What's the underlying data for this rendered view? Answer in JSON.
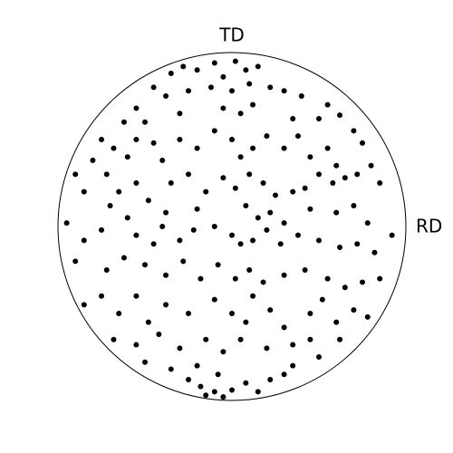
{
  "chart_data": {
    "type": "scatter",
    "annotations": [
      "TD",
      "RD"
    ],
    "color": "#000000",
    "xlim": [
      -1,
      1
    ],
    "ylim": [
      -1,
      1
    ],
    "x": [
      -0.35,
      -0.28,
      -0.2,
      -0.1,
      -0.05,
      0.02,
      0.08,
      0.15,
      -0.45,
      -0.38,
      -0.25,
      -0.12,
      0.0,
      0.1,
      0.22,
      0.3,
      0.4,
      0.55,
      0.62,
      0.5,
      -0.55,
      -0.62,
      -0.5,
      -0.3,
      -0.05,
      0.05,
      0.12,
      0.35,
      0.7,
      0.75,
      -0.75,
      -0.68,
      -0.8,
      -0.72,
      -0.6,
      -0.55,
      -0.45,
      -0.4,
      -0.3,
      -0.2,
      -0.1,
      0.0,
      0.05,
      0.12,
      0.2,
      0.3,
      0.38,
      0.45,
      0.55,
      0.6,
      0.5,
      0.58,
      0.65,
      0.72,
      0.8,
      0.85,
      -0.9,
      -0.85,
      -0.65,
      -0.55,
      -0.48,
      -0.35,
      -0.25,
      -0.15,
      -0.05,
      0.02,
      0.1,
      0.18,
      0.25,
      0.35,
      0.42,
      -0.7,
      -0.6,
      -0.38,
      -0.2,
      0.08,
      0.15,
      0.22,
      0.3,
      0.45,
      0.6,
      0.7,
      0.78,
      -0.95,
      -0.85,
      -0.75,
      -0.55,
      -0.45,
      -0.4,
      -0.3,
      -0.22,
      -0.1,
      0.0,
      0.05,
      0.12,
      0.2,
      0.28,
      0.38,
      0.5,
      0.62,
      0.72,
      0.82,
      0.92,
      -0.9,
      -0.72,
      -0.62,
      -0.5,
      -0.38,
      -0.28,
      -0.18,
      -0.08,
      0.02,
      0.1,
      0.18,
      0.3,
      0.42,
      0.55,
      0.65,
      0.75,
      0.85,
      -0.85,
      -0.75,
      -0.65,
      -0.55,
      -0.48,
      -0.38,
      -0.25,
      -0.1,
      0.0,
      0.08,
      0.12,
      0.22,
      0.3,
      0.45,
      0.52,
      0.6,
      0.7,
      0.78,
      -0.68,
      -0.55,
      -0.42,
      -0.3,
      -0.15,
      -0.05,
      0.05,
      0.2,
      0.35,
      0.45,
      0.62,
      -0.5,
      -0.35,
      -0.2,
      -0.18,
      -0.15,
      -0.1,
      -0.05,
      0.0,
      0.08,
      0.15,
      0.22,
      0.3,
      0.35,
      0.5,
      -0.25,
      -0.08
    ],
    "values": [
      0.88,
      0.92,
      0.9,
      0.94,
      0.86,
      0.95,
      0.9,
      0.92,
      0.8,
      0.75,
      0.78,
      0.8,
      0.78,
      0.82,
      0.8,
      0.78,
      0.75,
      0.7,
      0.64,
      0.62,
      0.68,
      0.6,
      0.6,
      0.65,
      0.68,
      0.65,
      0.7,
      0.62,
      0.55,
      0.48,
      0.5,
      0.45,
      0.38,
      0.3,
      0.4,
      0.5,
      0.48,
      0.38,
      0.5,
      0.45,
      0.55,
      0.5,
      0.4,
      0.45,
      0.52,
      0.45,
      0.52,
      0.4,
      0.45,
      0.35,
      0.3,
      0.25,
      0.28,
      0.3,
      0.35,
      0.25,
      0.3,
      0.2,
      0.2,
      0.25,
      0.15,
      0.25,
      0.3,
      0.2,
      0.28,
      0.22,
      0.3,
      0.25,
      0.18,
      0.2,
      0.22,
      0.12,
      0.05,
      0.08,
      0.1,
      0.12,
      0.05,
      0.08,
      0.02,
      0.1,
      0.08,
      0.12,
      0.02,
      0.02,
      -0.08,
      -0.02,
      -0.05,
      -0.1,
      0.0,
      -0.08,
      -0.02,
      0.0,
      -0.05,
      -0.1,
      -0.08,
      -0.02,
      -0.1,
      -0.05,
      -0.08,
      -0.12,
      -0.1,
      -0.15,
      -0.05,
      -0.2,
      -0.25,
      -0.18,
      -0.22,
      -0.28,
      -0.2,
      -0.3,
      -0.22,
      -0.3,
      -0.25,
      -0.32,
      -0.28,
      -0.25,
      -0.3,
      -0.35,
      -0.32,
      -0.3,
      -0.45,
      -0.4,
      -0.5,
      -0.4,
      -0.55,
      -0.45,
      -0.5,
      -0.42,
      -0.5,
      -0.55,
      -0.4,
      -0.48,
      -0.58,
      -0.5,
      -0.42,
      -0.55,
      -0.48,
      -0.52,
      -0.65,
      -0.68,
      -0.62,
      -0.7,
      -0.65,
      -0.72,
      -0.65,
      -0.7,
      -0.68,
      -0.65,
      -0.65,
      -0.78,
      -0.82,
      -0.8,
      -0.92,
      -0.97,
      -0.95,
      -0.98,
      -0.94,
      -0.9,
      -0.95,
      -0.88,
      -0.85,
      -0.8,
      -0.75,
      -0.88,
      -0.85
    ]
  }
}
